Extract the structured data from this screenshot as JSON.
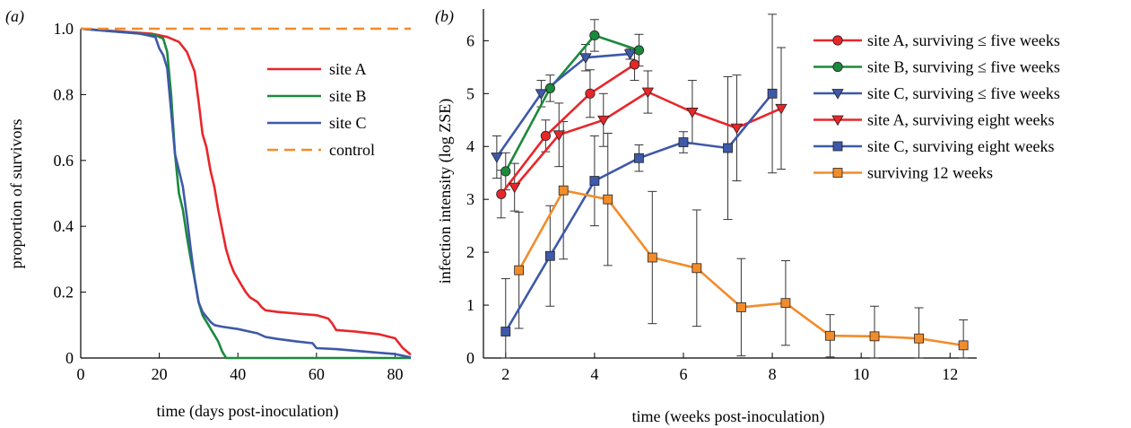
{
  "chart_data": [
    {
      "panel_label": "(a)",
      "type": "line",
      "xlabel": "time (days post-inoculation)",
      "ylabel": "proportion of survivors",
      "xlim": [
        0,
        84
      ],
      "ylim": [
        0,
        1.0
      ],
      "xticks": [
        "0",
        "20",
        "40",
        "60",
        "80"
      ],
      "xtick_values": [
        0,
        20,
        40,
        60,
        80
      ],
      "yticks": [
        "0",
        "0.2",
        "0.4",
        "0.6",
        "0.8",
        "1.0"
      ],
      "ytick_values": [
        0,
        0.2,
        0.4,
        0.6,
        0.8,
        1.0
      ],
      "legend_position": "right",
      "series": [
        {
          "name": "site A",
          "color": "#e8262a",
          "dash": false,
          "points": [
            [
              0,
              1.0
            ],
            [
              18,
              0.985
            ],
            [
              22,
              0.975
            ],
            [
              25,
              0.96
            ],
            [
              27,
              0.93
            ],
            [
              29,
              0.87
            ],
            [
              30,
              0.78
            ],
            [
              31,
              0.68
            ],
            [
              32,
              0.64
            ],
            [
              33,
              0.57
            ],
            [
              34,
              0.52
            ],
            [
              35,
              0.45
            ],
            [
              36,
              0.39
            ],
            [
              37,
              0.33
            ],
            [
              38,
              0.29
            ],
            [
              39,
              0.26
            ],
            [
              40,
              0.24
            ],
            [
              41,
              0.22
            ],
            [
              42,
              0.2
            ],
            [
              43,
              0.185
            ],
            [
              45,
              0.17
            ],
            [
              46,
              0.155
            ],
            [
              47,
              0.145
            ],
            [
              50,
              0.14
            ],
            [
              55,
              0.135
            ],
            [
              60,
              0.13
            ],
            [
              63,
              0.12
            ],
            [
              64,
              0.105
            ],
            [
              65,
              0.085
            ],
            [
              70,
              0.08
            ],
            [
              76,
              0.072
            ],
            [
              80,
              0.06
            ],
            [
              82,
              0.03
            ],
            [
              84,
              0.01
            ]
          ]
        },
        {
          "name": "site B",
          "color": "#1b8a3c",
          "dash": false,
          "points": [
            [
              0,
              1.0
            ],
            [
              15,
              0.985
            ],
            [
              19,
              0.98
            ],
            [
              20,
              0.975
            ],
            [
              21,
              0.97
            ],
            [
              22,
              0.93
            ],
            [
              23,
              0.8
            ],
            [
              24,
              0.62
            ],
            [
              25,
              0.5
            ],
            [
              26,
              0.45
            ],
            [
              27,
              0.37
            ],
            [
              28,
              0.3
            ],
            [
              29,
              0.24
            ],
            [
              30,
              0.17
            ],
            [
              31,
              0.13
            ],
            [
              32,
              0.11
            ],
            [
              33,
              0.09
            ],
            [
              34,
              0.07
            ],
            [
              35,
              0.05
            ],
            [
              36,
              0.02
            ],
            [
              37,
              0.0
            ],
            [
              84,
              0.0
            ]
          ]
        },
        {
          "name": "site C",
          "color": "#3e59a8",
          "dash": false,
          "points": [
            [
              0,
              1.0
            ],
            [
              15,
              0.985
            ],
            [
              19,
              0.975
            ],
            [
              20,
              0.94
            ],
            [
              21,
              0.92
            ],
            [
              22,
              0.88
            ],
            [
              23,
              0.75
            ],
            [
              24,
              0.62
            ],
            [
              25,
              0.57
            ],
            [
              26,
              0.52
            ],
            [
              27,
              0.43
            ],
            [
              28,
              0.33
            ],
            [
              29,
              0.24
            ],
            [
              30,
              0.17
            ],
            [
              31,
              0.14
            ],
            [
              32,
              0.125
            ],
            [
              33,
              0.11
            ],
            [
              34,
              0.1
            ],
            [
              36,
              0.095
            ],
            [
              40,
              0.088
            ],
            [
              45,
              0.075
            ],
            [
              47,
              0.064
            ],
            [
              50,
              0.058
            ],
            [
              55,
              0.05
            ],
            [
              59,
              0.045
            ],
            [
              60,
              0.03
            ],
            [
              65,
              0.027
            ],
            [
              70,
              0.022
            ],
            [
              75,
              0.017
            ],
            [
              80,
              0.012
            ],
            [
              84,
              0.002
            ]
          ]
        },
        {
          "name": "control",
          "color": "#f28c2b",
          "dash": true,
          "points": [
            [
              0,
              1.0
            ],
            [
              84,
              1.0
            ]
          ]
        }
      ]
    },
    {
      "panel_label": "(b)",
      "type": "line",
      "xlabel": "time (weeks post-inoculation)",
      "ylabel": "infection intensity (log ZSE)",
      "xlim": [
        1.5,
        12.6
      ],
      "ylim": [
        0,
        6.6
      ],
      "xticks": [
        "2",
        "4",
        "6",
        "8",
        "10",
        "12"
      ],
      "xtick_values": [
        2,
        4,
        6,
        8,
        10,
        12
      ],
      "yticks": [
        "0",
        "1",
        "2",
        "3",
        "4",
        "5",
        "6"
      ],
      "ytick_values": [
        0,
        1,
        2,
        3,
        4,
        5,
        6
      ],
      "legend_position": "top-right",
      "series": [
        {
          "name": "site A, surviving ≤ five weeks",
          "color": "#e8262a",
          "marker": "circle",
          "points": [
            [
              1.9,
              3.1,
              0.45
            ],
            [
              2.9,
              4.2,
              0.3
            ],
            [
              3.9,
              5.0,
              0.45
            ],
            [
              4.9,
              5.55,
              0.3
            ]
          ]
        },
        {
          "name": "site B, surviving ≤ five weeks",
          "color": "#1b8a3c",
          "marker": "circle",
          "points": [
            [
              2.0,
              3.53,
              0.35
            ],
            [
              3.0,
              5.1,
              0.25
            ],
            [
              4.0,
              6.1,
              0.3
            ],
            [
              5.0,
              5.82,
              0.3
            ]
          ]
        },
        {
          "name": "site C, surviving ≤ five weeks",
          "color": "#3e59a8",
          "marker": "triangle",
          "points": [
            [
              1.8,
              3.8,
              0.4
            ],
            [
              2.8,
              5.0,
              0.25
            ],
            [
              3.8,
              5.68,
              0.25
            ],
            [
              4.8,
              5.75,
              0.1
            ]
          ]
        },
        {
          "name": "site A, surviving eight weeks",
          "color": "#e8262a",
          "marker": "triangle",
          "points": [
            [
              2.2,
              3.23,
              0.45
            ],
            [
              3.2,
              4.22,
              0.6
            ],
            [
              4.2,
              4.5,
              0.5
            ],
            [
              5.2,
              5.03,
              0.4
            ],
            [
              6.2,
              4.65,
              0.6
            ],
            [
              7.2,
              4.35,
              1.0
            ],
            [
              8.2,
              4.72,
              1.15
            ]
          ]
        },
        {
          "name": "site C, surviving eight weeks",
          "color": "#3e59a8",
          "marker": "square",
          "points": [
            [
              2.0,
              0.5,
              1.0
            ],
            [
              3.0,
              1.93,
              0.95
            ],
            [
              4.0,
              3.35,
              0.85
            ],
            [
              5.0,
              3.78,
              0.25
            ],
            [
              6.0,
              4.08,
              0.2
            ],
            [
              7.0,
              3.97,
              1.35
            ],
            [
              8.0,
              5.0,
              1.5
            ]
          ]
        },
        {
          "name": "surviving 12 weeks",
          "color": "#f28c2b",
          "marker": "square",
          "points": [
            [
              2.3,
              1.66,
              1.1
            ],
            [
              3.3,
              3.17,
              1.3
            ],
            [
              4.3,
              3.0,
              1.25
            ],
            [
              5.3,
              1.9,
              1.25
            ],
            [
              6.3,
              1.7,
              1.1
            ],
            [
              7.3,
              0.96,
              0.92
            ],
            [
              8.3,
              1.04,
              0.8
            ],
            [
              9.3,
              0.42,
              0.4
            ],
            [
              10.3,
              0.41,
              0.57
            ],
            [
              11.3,
              0.37,
              0.58
            ],
            [
              12.3,
              0.24,
              0.48
            ]
          ]
        }
      ]
    }
  ]
}
